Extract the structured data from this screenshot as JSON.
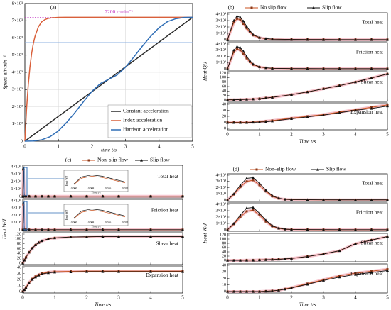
{
  "colors": {
    "constant": "#2b2b2b",
    "index": "#d9603b",
    "harrison": "#2f6db5",
    "noslip": "#c8521f",
    "noslip_marker": "#8b3a1a",
    "slip": "#111111",
    "band": "#f4b6c2",
    "annot": "#c030c0"
  },
  "chart_data": [
    {
      "id": "a",
      "type": "line",
      "panel_label": "(a)",
      "xlabel": "time t/s",
      "ylabel": "Speed n/r·min⁻¹",
      "xlim": [
        0,
        5
      ],
      "ylim": [
        0,
        8000
      ],
      "xticks": [
        "0",
        "1",
        "2",
        "3",
        "4",
        "5"
      ],
      "yticks": [
        "0",
        "1×10³",
        "2×10³",
        "3×10³",
        "4×10³",
        "5×10³",
        "6×10³",
        "7×10³",
        "8×10³"
      ],
      "annotation": "7200 r·min⁻¹",
      "legend_position": "bottom-right",
      "series": [
        {
          "name": "Constant acceleration",
          "x": [
            0,
            5
          ],
          "y": [
            0,
            7200
          ]
        },
        {
          "name": "Index acceleration",
          "x": [
            0,
            0.05,
            0.1,
            0.15,
            0.2,
            0.25,
            0.3,
            0.4,
            0.5,
            0.6,
            0.7,
            0.8,
            1.0,
            1.2,
            5
          ],
          "y": [
            0,
            1850,
            3250,
            4300,
            5080,
            5660,
            6080,
            6640,
            6930,
            7070,
            7140,
            7170,
            7195,
            7200,
            7200
          ]
        },
        {
          "name": "Harrison acceleration",
          "x": [
            0,
            0.25,
            0.5,
            0.75,
            1.0,
            1.25,
            1.5,
            1.75,
            2.0,
            2.25,
            2.5,
            2.75,
            3.0,
            3.25,
            3.5,
            3.75,
            4.0,
            4.25,
            4.5,
            4.75,
            5.0
          ],
          "y": [
            0,
            10,
            80,
            260,
            600,
            1100,
            1680,
            2300,
            2900,
            3350,
            3600,
            3850,
            4300,
            4900,
            5520,
            6100,
            6600,
            6950,
            7120,
            7190,
            7200
          ]
        }
      ]
    },
    {
      "id": "b",
      "type": "line",
      "panel_label": "(b)",
      "legend": [
        "No slip flow",
        "Slip flow"
      ],
      "xlabel": "Time t/s",
      "ylabel": "Heat Q/J",
      "xlim": [
        0,
        5
      ],
      "xticks": [
        "0",
        "1",
        "2",
        "3",
        "4",
        "5"
      ],
      "subplots": [
        {
          "title": "Total heat",
          "ylim": [
            0,
            40000
          ],
          "yticks": [
            "0",
            "1×10⁴",
            "2×10⁴",
            "3×10⁴",
            "4×10⁴"
          ],
          "x": [
            0,
            0.2,
            0.3,
            0.4,
            0.5,
            0.6,
            0.7,
            0.8,
            1.0,
            1.2,
            1.4,
            2.0,
            2.5,
            3.0,
            3.5,
            4.0,
            4.5,
            5.0
          ],
          "no_slip": [
            0,
            27000,
            33000,
            31000,
            25000,
            18000,
            12000,
            7000,
            3000,
            1500,
            800,
            400,
            300,
            250,
            200,
            200,
            200,
            200
          ],
          "slip": [
            0,
            30000,
            37000,
            35000,
            29000,
            21000,
            14000,
            8000,
            3500,
            1800,
            900,
            500,
            400,
            300,
            250,
            250,
            250,
            250
          ]
        },
        {
          "title": "Friction heat",
          "ylim": [
            0,
            40000
          ],
          "yticks": [
            "0",
            "1×10⁴",
            "2×10⁴",
            "3×10⁴",
            "4×10⁴"
          ],
          "x": [
            0,
            0.2,
            0.3,
            0.4,
            0.5,
            0.6,
            0.7,
            0.8,
            1.0,
            1.2,
            1.4,
            2.0,
            2.5,
            3.0,
            3.5,
            4.0,
            4.5,
            5.0
          ],
          "no_slip": [
            0,
            27000,
            32000,
            30000,
            24000,
            17000,
            11000,
            6500,
            2800,
            1400,
            700,
            300,
            200,
            150,
            120,
            100,
            100,
            100
          ],
          "slip": [
            0,
            30000,
            36000,
            34000,
            28000,
            20000,
            13000,
            7500,
            3300,
            1600,
            800,
            400,
            300,
            200,
            150,
            150,
            150,
            150
          ]
        },
        {
          "title": "Shear heat",
          "ylim": [
            0,
            120
          ],
          "yticks": [
            "0",
            "20",
            "40",
            "60",
            "80",
            "100",
            "120"
          ],
          "x": [
            0,
            0.2,
            0.4,
            0.6,
            0.8,
            1.0,
            1.2,
            1.4,
            2.0,
            2.5,
            3.0,
            3.5,
            4.0,
            4.5,
            5.0
          ],
          "no_slip": [
            1,
            1,
            2,
            3,
            4,
            6,
            9,
            12,
            24,
            36,
            50,
            64,
            80,
            98,
            116
          ],
          "slip": [
            1,
            1,
            2,
            3,
            4,
            6,
            9,
            12,
            24,
            36,
            50,
            64,
            80,
            98,
            116
          ]
        },
        {
          "title": "Expansion heat",
          "ylim": [
            0,
            40
          ],
          "yticks": [
            "0",
            "10",
            "20",
            "30",
            "40"
          ],
          "x": [
            0,
            0.2,
            0.4,
            0.6,
            0.8,
            1.0,
            1.2,
            1.4,
            2.0,
            2.5,
            3.0,
            3.5,
            4.0,
            4.5,
            5.0
          ],
          "no_slip": [
            10,
            10,
            10,
            10,
            10.5,
            11,
            12,
            13,
            17,
            20,
            23,
            27,
            31,
            35,
            39
          ],
          "slip": [
            9.5,
            9.5,
            9.5,
            9.5,
            10,
            10.5,
            11,
            12,
            16,
            19,
            22,
            26,
            30,
            33,
            37
          ]
        }
      ]
    },
    {
      "id": "c",
      "type": "line",
      "panel_label": "(c)",
      "legend": [
        "Non–slip flow",
        "Slip flow"
      ],
      "xlabel": "Time t/s",
      "ylabel": "Heat W/J",
      "xlim": [
        0,
        5
      ],
      "xticks": [
        "0",
        "1",
        "2",
        "3",
        "4",
        "5"
      ],
      "inset_xticks": [
        "0.000",
        "0.008",
        "0.016",
        "0.024"
      ],
      "inset_xlabel": "Time t/s",
      "inset_ylabel": "Heat W/J",
      "subplots": [
        {
          "title": "Total heat",
          "ylim": [
            0,
            40000
          ],
          "yticks": [
            "0",
            "1×10⁴",
            "2×10⁴",
            "3×10⁴",
            "4×10⁴"
          ],
          "x": [
            0,
            0.02,
            0.05,
            0.1,
            0.2,
            0.4,
            0.6,
            0.8,
            1.0,
            1.5,
            2.0,
            2.5,
            3.0,
            4.0,
            5.0
          ],
          "no_slip": [
            0,
            36000,
            600,
            400,
            300,
            250,
            250,
            250,
            250,
            250,
            250,
            250,
            250,
            250,
            250
          ],
          "slip": [
            0,
            38000,
            700,
            450,
            350,
            300,
            300,
            300,
            300,
            300,
            300,
            300,
            300,
            300,
            300
          ]
        },
        {
          "title": "Friction heat",
          "ylim": [
            0,
            40000
          ],
          "yticks": [
            "0",
            "1×10⁴",
            "2×10⁴",
            "3×10⁴",
            "4×10⁴"
          ],
          "x": [
            0,
            0.02,
            0.05,
            0.1,
            0.2,
            0.4,
            0.6,
            0.8,
            1.0,
            1.5,
            2.0,
            2.5,
            3.0,
            4.0,
            5.0
          ],
          "no_slip": [
            0,
            35000,
            500,
            300,
            200,
            150,
            150,
            150,
            150,
            150,
            150,
            150,
            150,
            150,
            150
          ],
          "slip": [
            0,
            37000,
            600,
            350,
            250,
            200,
            200,
            200,
            200,
            200,
            200,
            200,
            200,
            200,
            200
          ]
        },
        {
          "title": "Shear heat",
          "ylim": [
            0,
            120
          ],
          "yticks": [
            "0",
            "20",
            "40",
            "60",
            "80",
            "100",
            "120"
          ],
          "x": [
            0,
            0.05,
            0.1,
            0.2,
            0.3,
            0.4,
            0.5,
            0.6,
            0.8,
            1.0,
            1.5,
            2.0,
            2.5,
            3.0,
            4.0,
            5.0
          ],
          "no_slip": [
            0,
            12,
            24,
            45,
            62,
            75,
            85,
            92,
            100,
            104,
            108,
            109,
            110,
            110,
            110,
            110
          ],
          "slip": [
            0,
            12,
            24,
            45,
            62,
            75,
            85,
            92,
            100,
            104,
            108,
            109,
            110,
            110,
            110,
            110
          ]
        },
        {
          "title": "Expansion heat",
          "ylim": [
            0,
            40
          ],
          "yticks": [
            "0",
            "10",
            "20",
            "30",
            "40"
          ],
          "x": [
            0,
            0.05,
            0.1,
            0.2,
            0.3,
            0.4,
            0.5,
            0.6,
            0.8,
            1.0,
            1.5,
            2.0,
            2.5,
            3.0,
            4.0,
            5.0
          ],
          "no_slip": [
            0,
            3,
            7,
            15,
            21,
            25,
            28,
            30,
            32,
            33,
            33.5,
            34,
            34,
            34,
            34,
            34
          ],
          "slip": [
            0,
            3,
            6.5,
            14,
            20,
            24,
            27,
            29,
            31,
            32,
            32.5,
            33,
            33,
            33,
            33,
            33
          ]
        }
      ]
    },
    {
      "id": "d",
      "type": "line",
      "panel_label": "(d)",
      "legend": [
        "Non–slip flow",
        "Slip flow"
      ],
      "xlabel": "Time t/s",
      "ylabel": "Heat W/J",
      "xlim": [
        0,
        5
      ],
      "xticks": [
        "0",
        "1",
        "2",
        "3",
        "4",
        "5"
      ],
      "subplots": [
        {
          "title": "Total heat",
          "ylim": [
            0,
            40000
          ],
          "yticks": [
            "0",
            "1×10⁴",
            "2×10⁴",
            "3×10⁴",
            "4×10⁴"
          ],
          "x": [
            0,
            0.2,
            0.4,
            0.6,
            0.8,
            1.0,
            1.2,
            1.4,
            1.6,
            1.8,
            2.0,
            2.5,
            3.0,
            3.5,
            4.0,
            4.5,
            5.0
          ],
          "no_slip": [
            0,
            9000,
            21000,
            30000,
            32000,
            24000,
            14000,
            6000,
            2500,
            1000,
            600,
            400,
            300,
            250,
            250,
            250,
            250
          ],
          "slip": [
            0,
            10000,
            24000,
            35000,
            36000,
            27000,
            16000,
            7000,
            3000,
            1200,
            700,
            500,
            400,
            300,
            300,
            300,
            300
          ]
        },
        {
          "title": "Friction heat",
          "ylim": [
            0,
            40000
          ],
          "yticks": [
            "0",
            "1×10⁴",
            "2×10⁴",
            "3×10⁴",
            "4×10⁴"
          ],
          "x": [
            0,
            0.2,
            0.4,
            0.6,
            0.8,
            1.0,
            1.2,
            1.4,
            1.6,
            1.8,
            2.0,
            2.5,
            3.0,
            3.5,
            4.0,
            4.5,
            5.0
          ],
          "no_slip": [
            0,
            9000,
            20000,
            29000,
            31000,
            23000,
            13000,
            5500,
            2200,
            900,
            500,
            300,
            200,
            150,
            150,
            150,
            150
          ],
          "slip": [
            0,
            10000,
            23000,
            34000,
            35000,
            26000,
            15000,
            6500,
            2700,
            1100,
            600,
            400,
            300,
            200,
            200,
            200,
            200
          ]
        },
        {
          "title": "Shear heat",
          "ylim": [
            0,
            120
          ],
          "yticks": [
            "0",
            "20",
            "40",
            "60",
            "80",
            "100",
            "120"
          ],
          "x": [
            0,
            0.2,
            0.4,
            0.6,
            0.8,
            1.0,
            1.2,
            1.4,
            1.6,
            1.8,
            2.0,
            2.5,
            3.0,
            3.5,
            4.0,
            4.5,
            5.0
          ],
          "no_slip": [
            0,
            0,
            0,
            1,
            1,
            2,
            3,
            4,
            5,
            7,
            9,
            18,
            30,
            45,
            78,
            95,
            112
          ],
          "slip": [
            0,
            0,
            0,
            1,
            1,
            2,
            3,
            4,
            5,
            7,
            9,
            18,
            30,
            45,
            78,
            95,
            112
          ]
        },
        {
          "title": "Expansion heat",
          "ylim": [
            0,
            40
          ],
          "yticks": [
            "0",
            "10",
            "20",
            "30",
            "40"
          ],
          "x": [
            0,
            0.2,
            0.4,
            0.6,
            0.8,
            1.0,
            1.2,
            1.4,
            1.6,
            1.8,
            2.0,
            2.5,
            3.0,
            3.5,
            4.0,
            4.5,
            5.0
          ],
          "no_slip": [
            0,
            0,
            0,
            0,
            0,
            0,
            0.5,
            1,
            2,
            4,
            6,
            12,
            18,
            24,
            28,
            31,
            34
          ],
          "slip": [
            0,
            0,
            0,
            0,
            0,
            0,
            0.5,
            1,
            2,
            3.5,
            5.5,
            11,
            17,
            22,
            26,
            29,
            32
          ]
        }
      ]
    }
  ]
}
